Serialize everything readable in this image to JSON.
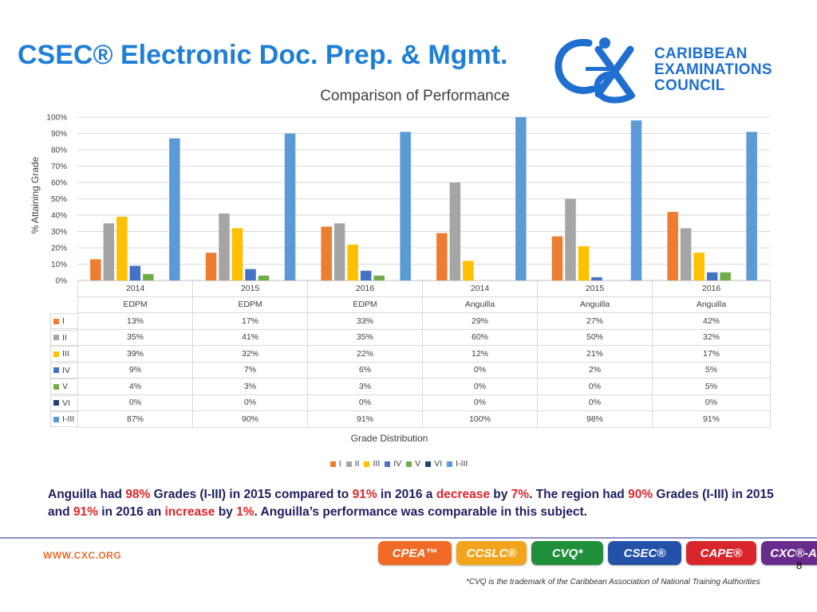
{
  "slide": {
    "title": "CSEC® Electronic Doc. Prep. & Mgmt.",
    "org_name": [
      "CARIBBEAN",
      "EXAMINATIONS",
      "COUNCIL"
    ],
    "logo_icon": "cxc-logo-icon",
    "summary": [
      {
        "text": "Anguilla had ",
        "hl": false
      },
      {
        "text": "98%",
        "hl": true
      },
      {
        "text": " Grades (I-III) in 2015 compared to ",
        "hl": false
      },
      {
        "text": "91%",
        "hl": true
      },
      {
        "text": " in 2016 a ",
        "hl": false
      },
      {
        "text": "decrease",
        "hl": true
      },
      {
        "text": " by ",
        "hl": false
      },
      {
        "text": "7%",
        "hl": true
      },
      {
        "text": ". The region had ",
        "hl": false
      },
      {
        "text": "90%",
        "hl": true
      },
      {
        "text": " Grades (I-III) in 2015 and ",
        "hl": false
      },
      {
        "text": "91%",
        "hl": true
      },
      {
        "text": " in 2016 an ",
        "hl": false
      },
      {
        "text": "increase",
        "hl": true
      },
      {
        "text": " by ",
        "hl": false
      },
      {
        "text": "1%",
        "hl": true
      },
      {
        "text": ". Anguilla’s performance was comparable in this subject.",
        "hl": false
      }
    ],
    "highlight_color": "#e0262b",
    "footer": {
      "website": "WWW.CXC.ORG",
      "badges": [
        {
          "label": "CPEA™",
          "color": "#ef6a24"
        },
        {
          "label": "CCSLC®",
          "color": "#f2a51c"
        },
        {
          "label": "CVQ*",
          "color": "#1f8f3a"
        },
        {
          "label": "CSEC®",
          "color": "#2352a8"
        },
        {
          "label": "CAPE®",
          "color": "#d9262c"
        },
        {
          "label": "CXC®-AD",
          "color": "#6a2c8c"
        }
      ],
      "page_number": "8",
      "trademark_note": "*CVQ is the trademark of the Caribbean Association of National Training Authorities"
    }
  },
  "chart_data": {
    "type": "bar",
    "title": "Comparison of Performance",
    "ylabel": "% Attaining Grade",
    "xlabel": "Grade Distribution",
    "ylim": [
      0,
      100
    ],
    "yticks": [
      "0%",
      "10%",
      "20%",
      "30%",
      "40%",
      "50%",
      "60%",
      "70%",
      "80%",
      "90%",
      "100%"
    ],
    "categories": [
      {
        "year": "2014",
        "group": "EDPM"
      },
      {
        "year": "2015",
        "group": "EDPM"
      },
      {
        "year": "2016",
        "group": "EDPM"
      },
      {
        "year": "2014",
        "group": "Anguilla"
      },
      {
        "year": "2015",
        "group": "Anguilla"
      },
      {
        "year": "2016",
        "group": "Anguilla"
      }
    ],
    "series": [
      {
        "name": "I",
        "color": "#ed7d31",
        "values": [
          13,
          17,
          33,
          29,
          27,
          42
        ],
        "labels": [
          "13%",
          "17%",
          "33%",
          "29%",
          "27%",
          "42%"
        ]
      },
      {
        "name": "II",
        "color": "#a5a5a5",
        "values": [
          35,
          41,
          35,
          60,
          50,
          32
        ],
        "labels": [
          "35%",
          "41%",
          "35%",
          "60%",
          "50%",
          "32%"
        ]
      },
      {
        "name": "III",
        "color": "#ffc000",
        "values": [
          39,
          32,
          22,
          12,
          21,
          17
        ],
        "labels": [
          "39%",
          "32%",
          "22%",
          "12%",
          "21%",
          "17%"
        ]
      },
      {
        "name": "IV",
        "color": "#4472c4",
        "values": [
          9,
          7,
          6,
          0,
          2,
          5
        ],
        "labels": [
          "9%",
          "7%",
          "6%",
          "0%",
          "2%",
          "5%"
        ]
      },
      {
        "name": "V",
        "color": "#70ad47",
        "values": [
          4,
          3,
          3,
          0,
          0,
          5
        ],
        "labels": [
          "4%",
          "3%",
          "3%",
          "0%",
          "0%",
          "5%"
        ]
      },
      {
        "name": "VI",
        "color": "#264478",
        "values": [
          0,
          0,
          0,
          0,
          0,
          0
        ],
        "labels": [
          "0%",
          "0%",
          "0%",
          "0%",
          "0%",
          "0%"
        ]
      },
      {
        "name": "I-III",
        "color": "#5b9bd5",
        "values": [
          87,
          90,
          91,
          100,
          98,
          91
        ],
        "labels": [
          "87%",
          "90%",
          "91%",
          "100%",
          "98%",
          "91%"
        ]
      }
    ],
    "grid": true,
    "legend": "bottom"
  }
}
